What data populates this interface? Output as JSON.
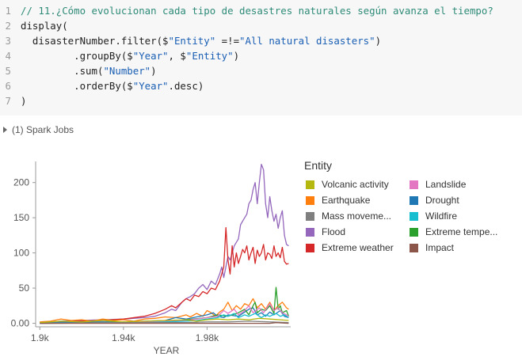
{
  "code": {
    "lines": [
      {
        "num": "1",
        "tokens": [
          {
            "t": "// 11.¿Cómo evolucionan cada tipo de desastres naturales según avanza el tiempo?",
            "c": "comment"
          }
        ]
      },
      {
        "num": "2",
        "tokens": [
          {
            "t": "display(",
            "c": "plain"
          }
        ]
      },
      {
        "num": "3",
        "tokens": [
          {
            "t": "  disasterNumber.filter($",
            "c": "plain"
          },
          {
            "t": "\"Entity\"",
            "c": "string"
          },
          {
            "t": " =!=",
            "c": "plain"
          },
          {
            "t": "\"All natural disasters\"",
            "c": "string"
          },
          {
            "t": ")",
            "c": "plain"
          }
        ]
      },
      {
        "num": "4",
        "tokens": [
          {
            "t": "         .groupBy($",
            "c": "plain"
          },
          {
            "t": "\"Year\"",
            "c": "string"
          },
          {
            "t": ", $",
            "c": "plain"
          },
          {
            "t": "\"Entity\"",
            "c": "string"
          },
          {
            "t": ")",
            "c": "plain"
          }
        ]
      },
      {
        "num": "5",
        "tokens": [
          {
            "t": "         .sum(",
            "c": "plain"
          },
          {
            "t": "\"Number\"",
            "c": "string"
          },
          {
            "t": ")",
            "c": "plain"
          }
        ]
      },
      {
        "num": "6",
        "tokens": [
          {
            "t": "         .orderBy($",
            "c": "plain"
          },
          {
            "t": "\"Year\"",
            "c": "string"
          },
          {
            "t": ".desc)",
            "c": "plain"
          }
        ]
      },
      {
        "num": "7",
        "tokens": [
          {
            "t": ")",
            "c": "plain"
          }
        ]
      }
    ]
  },
  "spark_jobs": {
    "label": "(1) Spark Jobs"
  },
  "legend": {
    "title": "Entity",
    "items": [
      {
        "label": "Volcanic activity",
        "color": "#b5b80e"
      },
      {
        "label": "Landslide",
        "color": "#e377c2"
      },
      {
        "label": "Earthquake",
        "color": "#ff7f0e"
      },
      {
        "label": "Drought",
        "color": "#1f77b4"
      },
      {
        "label": "Mass moveme...",
        "color": "#7f7f7f"
      },
      {
        "label": "Wildfire",
        "color": "#17becf"
      },
      {
        "label": "Flood",
        "color": "#9467bd"
      },
      {
        "label": "Extreme tempe...",
        "color": "#2ca02c"
      },
      {
        "label": "Extreme weather",
        "color": "#d62728"
      },
      {
        "label": "Impact",
        "color": "#8c564b"
      }
    ]
  },
  "chart_data": {
    "type": "line",
    "xlabel": "YEAR",
    "ylabel": "",
    "xlim": [
      1898,
      2020
    ],
    "ylim": [
      -5,
      230
    ],
    "x_ticks": [
      {
        "v": 1900,
        "label": "1.9k"
      },
      {
        "v": 1940,
        "label": "1.94k"
      },
      {
        "v": 1980,
        "label": "1.98k"
      }
    ],
    "y_ticks": [
      {
        "v": 0,
        "label": "0.00"
      },
      {
        "v": 50,
        "label": "50"
      },
      {
        "v": 100,
        "label": "100"
      },
      {
        "v": 150,
        "label": "150"
      },
      {
        "v": 200,
        "label": "200"
      }
    ],
    "grid": false,
    "legend": "right",
    "series": [
      {
        "name": "Flood",
        "color": "#9467bd",
        "points": [
          [
            1900,
            1
          ],
          [
            1910,
            3
          ],
          [
            1920,
            4
          ],
          [
            1930,
            5
          ],
          [
            1940,
            6
          ],
          [
            1950,
            8
          ],
          [
            1955,
            10
          ],
          [
            1960,
            15
          ],
          [
            1963,
            20
          ],
          [
            1965,
            18
          ],
          [
            1968,
            30
          ],
          [
            1970,
            35
          ],
          [
            1972,
            38
          ],
          [
            1974,
            42
          ],
          [
            1976,
            50
          ],
          [
            1978,
            55
          ],
          [
            1980,
            48
          ],
          [
            1982,
            60
          ],
          [
            1984,
            55
          ],
          [
            1986,
            70
          ],
          [
            1987,
            80
          ],
          [
            1988,
            65
          ],
          [
            1990,
            95
          ],
          [
            1991,
            90
          ],
          [
            1993,
            110
          ],
          [
            1995,
            120
          ],
          [
            1996,
            140
          ],
          [
            1998,
            150
          ],
          [
            1999,
            155
          ],
          [
            2000,
            170
          ],
          [
            2001,
            175
          ],
          [
            2002,
            190
          ],
          [
            2003,
            200
          ],
          [
            2004,
            170
          ],
          [
            2005,
            200
          ],
          [
            2006,
            226
          ],
          [
            2007,
            218
          ],
          [
            2008,
            170
          ],
          [
            2009,
            150
          ],
          [
            2010,
            180
          ],
          [
            2011,
            160
          ],
          [
            2012,
            145
          ],
          [
            2013,
            155
          ],
          [
            2014,
            135
          ],
          [
            2015,
            150
          ],
          [
            2016,
            160
          ],
          [
            2017,
            125
          ],
          [
            2018,
            112
          ],
          [
            2019,
            110
          ]
        ]
      },
      {
        "name": "Extreme weather",
        "color": "#d62728",
        "points": [
          [
            1900,
            1
          ],
          [
            1910,
            2
          ],
          [
            1920,
            3
          ],
          [
            1930,
            4
          ],
          [
            1940,
            6
          ],
          [
            1950,
            10
          ],
          [
            1955,
            14
          ],
          [
            1960,
            20
          ],
          [
            1963,
            25
          ],
          [
            1965,
            22
          ],
          [
            1968,
            30
          ],
          [
            1970,
            35
          ],
          [
            1972,
            32
          ],
          [
            1974,
            40
          ],
          [
            1976,
            38
          ],
          [
            1978,
            45
          ],
          [
            1980,
            42
          ],
          [
            1982,
            50
          ],
          [
            1984,
            48
          ],
          [
            1986,
            60
          ],
          [
            1988,
            80
          ],
          [
            1989,
            136
          ],
          [
            1990,
            90
          ],
          [
            1991,
            70
          ],
          [
            1992,
            110
          ],
          [
            1993,
            80
          ],
          [
            1994,
            100
          ],
          [
            1995,
            85
          ],
          [
            1996,
            95
          ],
          [
            1997,
            105
          ],
          [
            1998,
            100
          ],
          [
            1999,
            110
          ],
          [
            2000,
            90
          ],
          [
            2001,
            100
          ],
          [
            2002,
            108
          ],
          [
            2003,
            85
          ],
          [
            2004,
            104
          ],
          [
            2005,
            95
          ],
          [
            2006,
            100
          ],
          [
            2007,
            112
          ],
          [
            2008,
            90
          ],
          [
            2009,
            100
          ],
          [
            2010,
            98
          ],
          [
            2011,
            92
          ],
          [
            2012,
            110
          ],
          [
            2013,
            95
          ],
          [
            2014,
            100
          ],
          [
            2015,
            93
          ],
          [
            2016,
            108
          ],
          [
            2017,
            88
          ],
          [
            2018,
            84
          ],
          [
            2019,
            85
          ]
        ]
      },
      {
        "name": "Earthquake",
        "color": "#ff7f0e",
        "points": [
          [
            1900,
            2
          ],
          [
            1905,
            3
          ],
          [
            1910,
            6
          ],
          [
            1915,
            4
          ],
          [
            1920,
            5
          ],
          [
            1925,
            3
          ],
          [
            1930,
            6
          ],
          [
            1935,
            4
          ],
          [
            1940,
            5
          ],
          [
            1945,
            3
          ],
          [
            1950,
            6
          ],
          [
            1955,
            7
          ],
          [
            1960,
            9
          ],
          [
            1965,
            8
          ],
          [
            1970,
            12
          ],
          [
            1972,
            9
          ],
          [
            1975,
            14
          ],
          [
            1978,
            10
          ],
          [
            1980,
            18
          ],
          [
            1982,
            15
          ],
          [
            1984,
            10
          ],
          [
            1986,
            16
          ],
          [
            1988,
            20
          ],
          [
            1990,
            30
          ],
          [
            1992,
            18
          ],
          [
            1994,
            25
          ],
          [
            1996,
            20
          ],
          [
            1998,
            28
          ],
          [
            2000,
            25
          ],
          [
            2002,
            35
          ],
          [
            2004,
            22
          ],
          [
            2006,
            28
          ],
          [
            2008,
            20
          ],
          [
            2010,
            30
          ],
          [
            2012,
            18
          ],
          [
            2014,
            25
          ],
          [
            2016,
            30
          ],
          [
            2018,
            22
          ],
          [
            2019,
            20
          ]
        ]
      },
      {
        "name": "Drought",
        "color": "#1f77b4",
        "points": [
          [
            1900,
            1
          ],
          [
            1920,
            2
          ],
          [
            1940,
            2
          ],
          [
            1960,
            4
          ],
          [
            1965,
            8
          ],
          [
            1970,
            6
          ],
          [
            1975,
            9
          ],
          [
            1980,
            12
          ],
          [
            1983,
            15
          ],
          [
            1985,
            10
          ],
          [
            1988,
            8
          ],
          [
            1990,
            12
          ],
          [
            1995,
            10
          ],
          [
            2000,
            20
          ],
          [
            2002,
            22
          ],
          [
            2004,
            12
          ],
          [
            2006,
            15
          ],
          [
            2008,
            10
          ],
          [
            2010,
            16
          ],
          [
            2012,
            12
          ],
          [
            2015,
            18
          ],
          [
            2017,
            10
          ],
          [
            2019,
            8
          ]
        ]
      },
      {
        "name": "Extreme temperature",
        "color": "#2ca02c",
        "points": [
          [
            1900,
            0
          ],
          [
            1930,
            1
          ],
          [
            1950,
            2
          ],
          [
            1960,
            3
          ],
          [
            1970,
            5
          ],
          [
            1980,
            8
          ],
          [
            1985,
            12
          ],
          [
            1990,
            10
          ],
          [
            1995,
            15
          ],
          [
            1998,
            20
          ],
          [
            2000,
            12
          ],
          [
            2002,
            25
          ],
          [
            2003,
            30
          ],
          [
            2004,
            15
          ],
          [
            2006,
            20
          ],
          [
            2008,
            18
          ],
          [
            2010,
            25
          ],
          [
            2012,
            14
          ],
          [
            2013,
            51
          ],
          [
            2014,
            20
          ],
          [
            2015,
            25
          ],
          [
            2016,
            15
          ],
          [
            2018,
            18
          ],
          [
            2019,
            10
          ]
        ]
      },
      {
        "name": "Landslide",
        "color": "#e377c2",
        "points": [
          [
            1900,
            0
          ],
          [
            1940,
            1
          ],
          [
            1960,
            3
          ],
          [
            1970,
            4
          ],
          [
            1975,
            6
          ],
          [
            1980,
            8
          ],
          [
            1985,
            10
          ],
          [
            1988,
            18
          ],
          [
            1990,
            14
          ],
          [
            1993,
            20
          ],
          [
            1995,
            12
          ],
          [
            1998,
            18
          ],
          [
            2000,
            25
          ],
          [
            2002,
            15
          ],
          [
            2005,
            22
          ],
          [
            2007,
            15
          ],
          [
            2010,
            28
          ],
          [
            2012,
            18
          ],
          [
            2014,
            22
          ],
          [
            2016,
            15
          ],
          [
            2018,
            12
          ],
          [
            2019,
            10
          ]
        ]
      },
      {
        "name": "Wildfire",
        "color": "#17becf",
        "points": [
          [
            1900,
            0
          ],
          [
            1950,
            1
          ],
          [
            1960,
            2
          ],
          [
            1970,
            3
          ],
          [
            1975,
            4
          ],
          [
            1980,
            6
          ],
          [
            1985,
            8
          ],
          [
            1988,
            12
          ],
          [
            1990,
            10
          ],
          [
            1993,
            14
          ],
          [
            1995,
            8
          ],
          [
            1998,
            12
          ],
          [
            2000,
            10
          ],
          [
            2003,
            14
          ],
          [
            2006,
            8
          ],
          [
            2008,
            12
          ],
          [
            2010,
            10
          ],
          [
            2013,
            14
          ],
          [
            2015,
            10
          ],
          [
            2017,
            12
          ],
          [
            2019,
            8
          ]
        ]
      },
      {
        "name": "Volcanic activity",
        "color": "#b5b80e",
        "points": [
          [
            1900,
            1
          ],
          [
            1910,
            3
          ],
          [
            1920,
            2
          ],
          [
            1930,
            4
          ],
          [
            1940,
            2
          ],
          [
            1950,
            3
          ],
          [
            1960,
            4
          ],
          [
            1970,
            5
          ],
          [
            1975,
            3
          ],
          [
            1980,
            5
          ],
          [
            1985,
            6
          ],
          [
            1990,
            5
          ],
          [
            1995,
            6
          ],
          [
            2000,
            5
          ],
          [
            2005,
            7
          ],
          [
            2010,
            6
          ],
          [
            2015,
            5
          ],
          [
            2019,
            4
          ]
        ]
      },
      {
        "name": "Mass movement",
        "color": "#7f7f7f",
        "points": [
          [
            1900,
            0
          ],
          [
            1950,
            1
          ],
          [
            1970,
            1
          ],
          [
            1980,
            2
          ],
          [
            1990,
            2
          ],
          [
            2000,
            3
          ],
          [
            2010,
            2
          ],
          [
            2019,
            1
          ]
        ]
      },
      {
        "name": "Impact",
        "color": "#8c564b",
        "points": [
          [
            1900,
            0
          ],
          [
            2010,
            0
          ],
          [
            2013,
            1
          ],
          [
            2019,
            0
          ]
        ]
      }
    ]
  }
}
